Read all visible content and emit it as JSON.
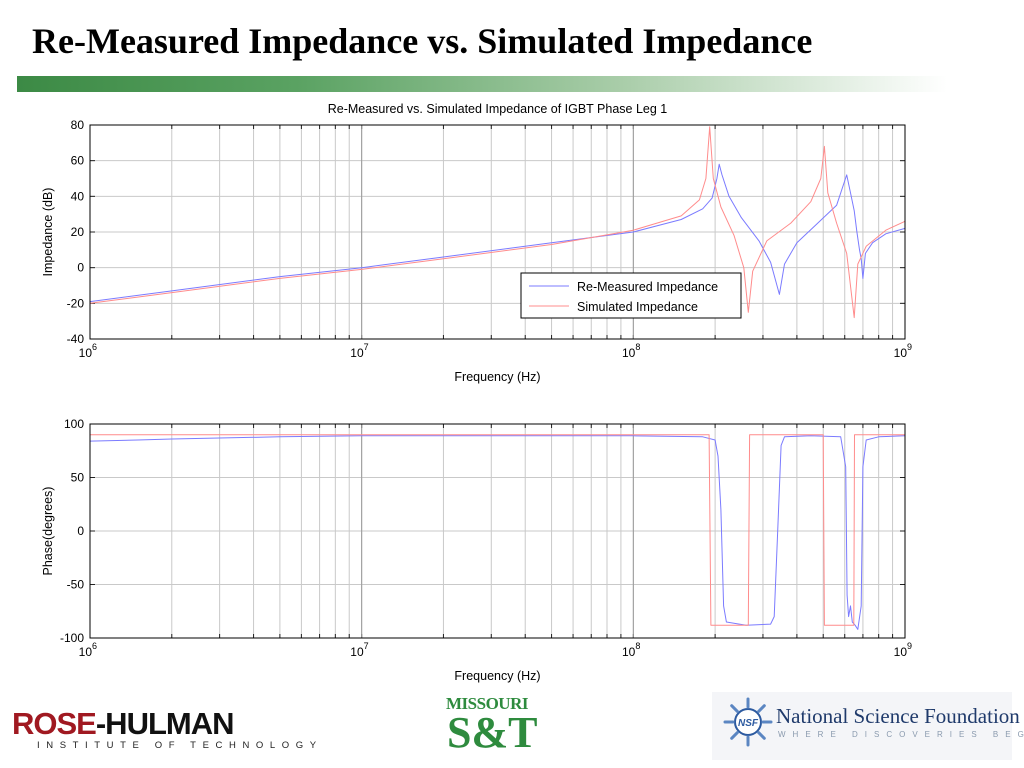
{
  "slide": {
    "title": "Re-Measured Impedance vs. Simulated Impedance"
  },
  "colors": {
    "title_bar": "#3c8a45",
    "remeasured": "#7b7bff",
    "simulated": "#ff8c8c",
    "grid": "#c9c9c9"
  },
  "chart_data": [
    {
      "type": "line",
      "title": "Re-Measured vs. Simulated Impedance of IGBT Phase Leg 1",
      "xlabel": "Frequency (Hz)",
      "ylabel": "Impedance (dB)",
      "xscale": "log",
      "xlim": [
        1000000,
        1000000000
      ],
      "ylim": [
        -40,
        80
      ],
      "x_ticks": [
        {
          "base": "10",
          "exp": "6",
          "value": 1000000
        },
        {
          "base": "10",
          "exp": "7",
          "value": 10000000
        },
        {
          "base": "10",
          "exp": "8",
          "value": 100000000
        },
        {
          "base": "10",
          "exp": "9",
          "value": 1000000000
        }
      ],
      "y_ticks": [
        "80",
        "60",
        "40",
        "20",
        "0",
        "-20",
        "-40"
      ],
      "grid": true,
      "legend": "lower-center",
      "series": [
        {
          "name": "Re-Measured Impedance",
          "color": "#7b7bff",
          "points": [
            [
              1000000,
              -19
            ],
            [
              2000000,
              -13
            ],
            [
              5000000,
              -5
            ],
            [
              10000000,
              0
            ],
            [
              20000000,
              6
            ],
            [
              50000000,
              14
            ],
            [
              100000000,
              20
            ],
            [
              150000000,
              27
            ],
            [
              180000000,
              33
            ],
            [
              195000000,
              39
            ],
            [
              203000000,
              50
            ],
            [
              207000000,
              58
            ],
            [
              212000000,
              52
            ],
            [
              225000000,
              40
            ],
            [
              250000000,
              28
            ],
            [
              290000000,
              15
            ],
            [
              320000000,
              3
            ],
            [
              345000000,
              -15
            ],
            [
              360000000,
              2
            ],
            [
              400000000,
              14
            ],
            [
              470000000,
              24
            ],
            [
              560000000,
              35
            ],
            [
              610000000,
              52
            ],
            [
              630000000,
              42
            ],
            [
              650000000,
              32
            ],
            [
              665000000,
              20
            ],
            [
              680000000,
              10
            ],
            [
              690000000,
              5
            ],
            [
              700000000,
              -6
            ],
            [
              715000000,
              8
            ],
            [
              760000000,
              14
            ],
            [
              850000000,
              19
            ],
            [
              1000000000,
              22
            ]
          ]
        },
        {
          "name": "Simulated Impedance",
          "color": "#ff8c8c",
          "points": [
            [
              1000000,
              -20
            ],
            [
              2000000,
              -14
            ],
            [
              5000000,
              -6
            ],
            [
              10000000,
              -1
            ],
            [
              20000000,
              5
            ],
            [
              50000000,
              13
            ],
            [
              100000000,
              21
            ],
            [
              150000000,
              29
            ],
            [
              175000000,
              38
            ],
            [
              185000000,
              50
            ],
            [
              191000000,
              79
            ],
            [
              197000000,
              50
            ],
            [
              210000000,
              34
            ],
            [
              235000000,
              18
            ],
            [
              255000000,
              0
            ],
            [
              265000000,
              -25
            ],
            [
              275000000,
              -2
            ],
            [
              310000000,
              15
            ],
            [
              380000000,
              25
            ],
            [
              450000000,
              37
            ],
            [
              490000000,
              50
            ],
            [
              505000000,
              68
            ],
            [
              520000000,
              42
            ],
            [
              560000000,
              25
            ],
            [
              610000000,
              8
            ],
            [
              650000000,
              -28
            ],
            [
              670000000,
              2
            ],
            [
              720000000,
              12
            ],
            [
              850000000,
              21
            ],
            [
              1000000000,
              26
            ]
          ]
        }
      ]
    },
    {
      "type": "line",
      "title": "",
      "xlabel": "Frequency (Hz)",
      "ylabel": "Phase(degrees)",
      "xscale": "log",
      "xlim": [
        1000000,
        1000000000
      ],
      "ylim": [
        -100,
        100
      ],
      "x_ticks": [
        {
          "base": "10",
          "exp": "6",
          "value": 1000000
        },
        {
          "base": "10",
          "exp": "7",
          "value": 10000000
        },
        {
          "base": "10",
          "exp": "8",
          "value": 100000000
        },
        {
          "base": "10",
          "exp": "9",
          "value": 1000000000
        }
      ],
      "y_ticks": [
        "100",
        "50",
        "0",
        "-50",
        "-100"
      ],
      "grid": true,
      "series": [
        {
          "name": "Re-Measured Impedance",
          "color": "#7b7bff",
          "points": [
            [
              1000000,
              84
            ],
            [
              1500000,
              85
            ],
            [
              2000000,
              86
            ],
            [
              5000000,
              88
            ],
            [
              10000000,
              89
            ],
            [
              50000000,
              89
            ],
            [
              100000000,
              89
            ],
            [
              180000000,
              88
            ],
            [
              200000000,
              85
            ],
            [
              205000000,
              70
            ],
            [
              210000000,
              20
            ],
            [
              215000000,
              -70
            ],
            [
              220000000,
              -85
            ],
            [
              260000000,
              -88
            ],
            [
              320000000,
              -87
            ],
            [
              330000000,
              -80
            ],
            [
              340000000,
              0
            ],
            [
              350000000,
              80
            ],
            [
              360000000,
              88
            ],
            [
              450000000,
              89
            ],
            [
              580000000,
              88
            ],
            [
              605000000,
              60
            ],
            [
              612000000,
              -60
            ],
            [
              620000000,
              -80
            ],
            [
              630000000,
              -70
            ],
            [
              640000000,
              -85
            ],
            [
              655000000,
              -88
            ],
            [
              670000000,
              -92
            ],
            [
              690000000,
              -70
            ],
            [
              700000000,
              60
            ],
            [
              720000000,
              85
            ],
            [
              800000000,
              88
            ],
            [
              1000000000,
              89
            ]
          ]
        },
        {
          "name": "Simulated Impedance",
          "color": "#ff8c8c",
          "points": [
            [
              1000000,
              90
            ],
            [
              50000000,
              90
            ],
            [
              100000000,
              90
            ],
            [
              190000000,
              90
            ],
            [
              193000000,
              -88
            ],
            [
              265000000,
              -88
            ],
            [
              268000000,
              90
            ],
            [
              500000000,
              90
            ],
            [
              505000000,
              -88
            ],
            [
              648000000,
              -88
            ],
            [
              652000000,
              90
            ],
            [
              1000000000,
              90
            ]
          ]
        }
      ]
    }
  ]
}
